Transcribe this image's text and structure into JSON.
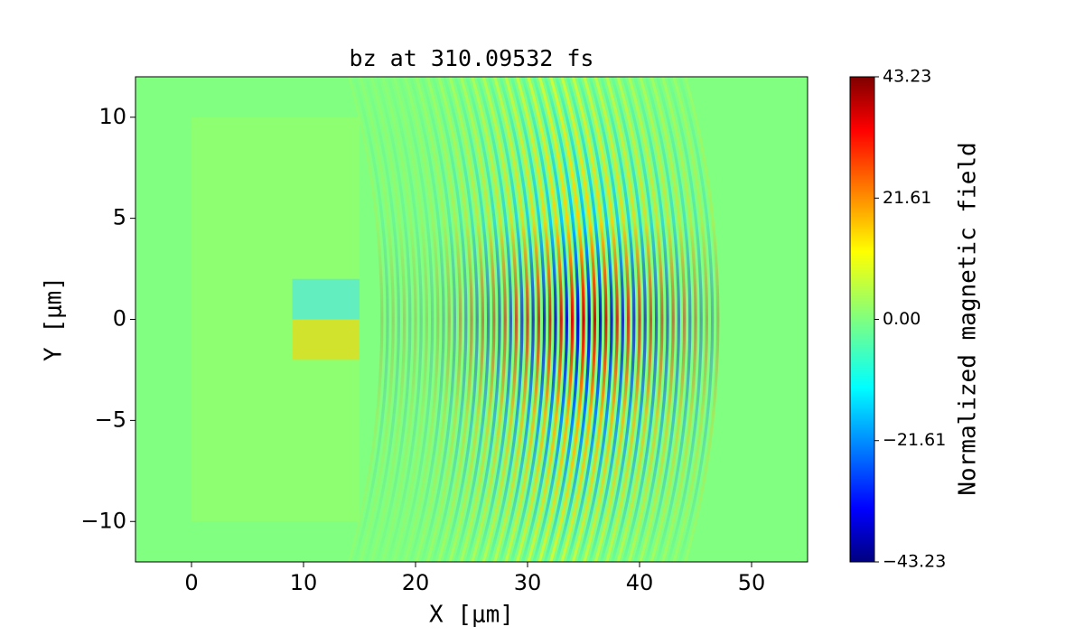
{
  "chart_data": {
    "type": "heatmap",
    "title": "bz at 310.09532 fs",
    "x_label": "X [μm]",
    "y_label": "Y [μm]",
    "xlim": [
      -5,
      55
    ],
    "xticks": [
      0,
      10,
      20,
      30,
      40,
      50
    ],
    "ylim": [
      -12,
      12
    ],
    "yticks": [
      {
        "value": -10,
        "label": "−10"
      },
      {
        "value": -5,
        "label": "−5"
      },
      0,
      5,
      10
    ],
    "colormap": "jet",
    "colorbar_label": "Normalized magnetic field",
    "clim": [
      -43.23,
      43.23
    ],
    "cticks": [
      {
        "value": -43.23,
        "label": "−43.23"
      },
      {
        "value": -21.61,
        "label": "−21.61"
      },
      {
        "value": 0,
        "label": "0.00"
      },
      21.61,
      43.23
    ]
  }
}
